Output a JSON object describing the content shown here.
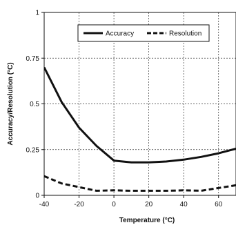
{
  "chart_data": {
    "type": "line",
    "xlabel": "Temperature (°C)",
    "ylabel": "Accuracy/Resolution (°C)",
    "xlim": [
      -40,
      70
    ],
    "ylim": [
      0,
      1
    ],
    "x_ticks": [
      -40,
      -20,
      0,
      20,
      40,
      60
    ],
    "x_tick_labels": [
      "-40",
      "-20",
      "0",
      "20",
      "40",
      "60"
    ],
    "y_ticks": [
      0,
      0.25,
      0.5,
      0.75,
      1
    ],
    "y_tick_labels": [
      "0",
      "0.25",
      "0.5",
      "0.75",
      "1"
    ],
    "grid": true,
    "legend_position": "top-center",
    "series": [
      {
        "name": "Accuracy",
        "style": "solid",
        "color": "#111111",
        "x": [
          -40,
          -30,
          -20,
          -10,
          0,
          10,
          20,
          30,
          40,
          50,
          60,
          70
        ],
        "values": [
          0.7,
          0.51,
          0.37,
          0.27,
          0.19,
          0.18,
          0.18,
          0.185,
          0.195,
          0.21,
          0.23,
          0.255
        ]
      },
      {
        "name": "Resolution",
        "style": "dashed",
        "color": "#111111",
        "x": [
          -40,
          -30,
          -20,
          -10,
          0,
          10,
          20,
          30,
          40,
          50,
          60,
          70
        ],
        "values": [
          0.105,
          0.065,
          0.045,
          0.025,
          0.027,
          0.025,
          0.025,
          0.025,
          0.027,
          0.025,
          0.04,
          0.055
        ]
      }
    ]
  }
}
